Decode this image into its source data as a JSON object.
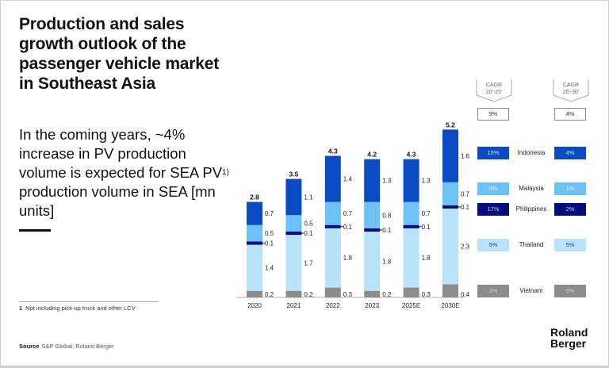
{
  "title": "Production and sales growth outlook of the passenger vehicle market in Southeast Asia",
  "subtitle": {
    "text": "In the coming years, ~4% increase in PV production volume is expected for SEA PV",
    "sup": "1)",
    "text2": " production volume in SEA [mn units]"
  },
  "footnote": {
    "num": "1",
    "text": "Not including pick-up truck and other LCV"
  },
  "source": {
    "label": "Source",
    "text": "S&P Global; Roland Berger"
  },
  "logo": "Roland Berger",
  "chart_data": {
    "type": "bar",
    "stacked": true,
    "categories": [
      "2020",
      "2021",
      "2022",
      "2023",
      "2025E",
      "2030E"
    ],
    "series": [
      {
        "name": "Vietnam",
        "color": "#8c8c8c",
        "values": [
          0.2,
          0.2,
          0.3,
          0.2,
          0.3,
          0.4
        ]
      },
      {
        "name": "Thailand",
        "color": "#b9e2fb",
        "values": [
          1.4,
          1.7,
          1.8,
          1.8,
          1.8,
          2.3
        ]
      },
      {
        "name": "Philippines",
        "color": "#050c7c",
        "values": [
          0.1,
          0.1,
          0.1,
          0.1,
          0.1,
          0.1
        ]
      },
      {
        "name": "Malaysia",
        "color": "#6cc1f5",
        "values": [
          0.5,
          0.5,
          0.7,
          0.8,
          0.7,
          0.7
        ]
      },
      {
        "name": "Indonesia",
        "color": "#0a4bc4",
        "values": [
          0.7,
          1.1,
          1.4,
          1.3,
          1.3,
          1.6
        ]
      }
    ],
    "totals": [
      "2.8",
      "3.5",
      "4.3",
      "4.2",
      "4.3",
      "5.2"
    ],
    "ylim": [
      0,
      5.5
    ],
    "grid": false
  },
  "cagr": {
    "headers": [
      {
        "line1": "CAGR",
        "line2": "20'-25'"
      },
      {
        "line1": "CAGR",
        "line2": "25'-30'"
      }
    ],
    "total": [
      "9%",
      "4%"
    ],
    "rows": [
      {
        "country": "Indonesia",
        "a": "15%",
        "b": "4%",
        "color": "#0a4bc4",
        "text": "#cfe3ff"
      },
      {
        "country": "Malaysia",
        "a": "9%",
        "b": "1%",
        "color": "#6cc1f5",
        "text": "#d9f0ff"
      },
      {
        "country": "Philippines",
        "a": "17%",
        "b": "2%",
        "color": "#050c7c",
        "text": "#c9cdf5"
      },
      {
        "country": "Thailand",
        "a": "5%",
        "b": "5%",
        "color": "#b9e2fb",
        "text": "#2a4a6a"
      },
      {
        "country": "Vietnam",
        "a": "3%",
        "b": "6%",
        "color": "#8c8c8c",
        "text": "#d0d0d0"
      }
    ]
  }
}
